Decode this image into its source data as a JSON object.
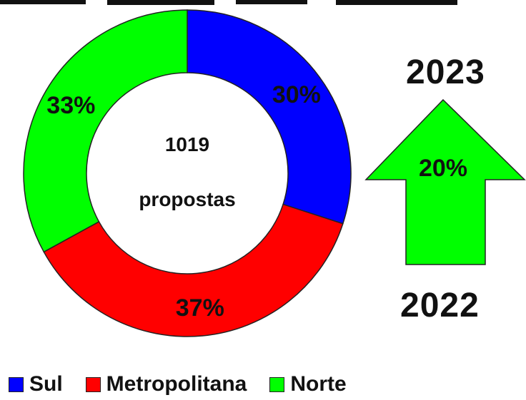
{
  "chart_data": {
    "type": "pie",
    "center_value": "1019",
    "center_label": "propostas",
    "slices": [
      {
        "name": "Sul",
        "value": 30,
        "label": "30%",
        "color": "#0000ff"
      },
      {
        "name": "Metropolitana",
        "value": 37,
        "label": "37%",
        "color": "#ff0000"
      },
      {
        "name": "Norte",
        "value": 33,
        "label": "33%",
        "color": "#00ff00"
      }
    ],
    "legend_position": "bottom-left"
  },
  "growth": {
    "from_year": "2022",
    "to_year": "2023",
    "percent_label": "20%",
    "arrow_color": "#00ff00",
    "direction": "up"
  }
}
